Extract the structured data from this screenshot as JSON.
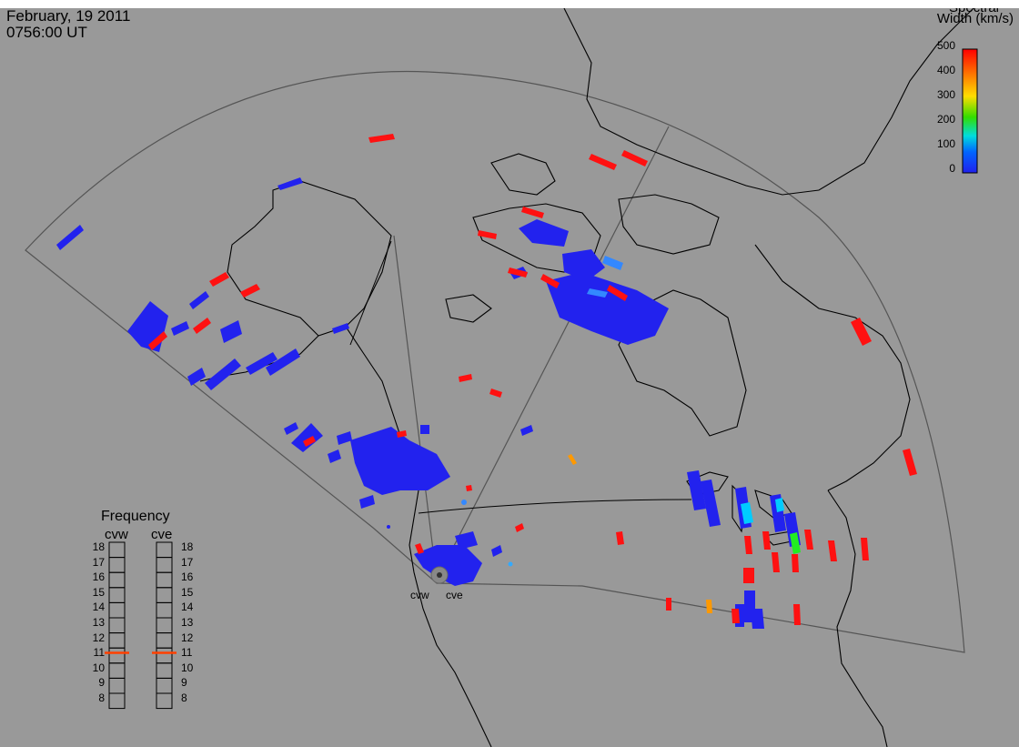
{
  "header": {
    "date": "February, 19 2011",
    "time": "0756:00 UT"
  },
  "colorbar": {
    "title_line1": "Spectral",
    "title_line2": "Width (km/s)",
    "ticks": [
      "500",
      "400",
      "300",
      "200",
      "100",
      "0"
    ],
    "colors": [
      "#ff0000",
      "#ff8000",
      "#ffdd00",
      "#33dd00",
      "#00dddd",
      "#0055ff",
      "#2020ee"
    ]
  },
  "stations": {
    "west": "cvw",
    "east": "cve"
  },
  "frequency_panel": {
    "title": "Frequency",
    "col_left": "cvw",
    "col_right": "cve",
    "labels": [
      "18",
      "17",
      "16",
      "15",
      "14",
      "13",
      "12",
      "11",
      "10",
      "9",
      "8"
    ],
    "cvw_value_mhz": 10.7,
    "cve_value_mhz": 10.7,
    "marker_color": "#ff4000"
  },
  "colors": {
    "background": "#999999",
    "coast": "#000000",
    "fov": "#444444",
    "low_width": "#2222ee",
    "high_width": "#ff1111"
  }
}
